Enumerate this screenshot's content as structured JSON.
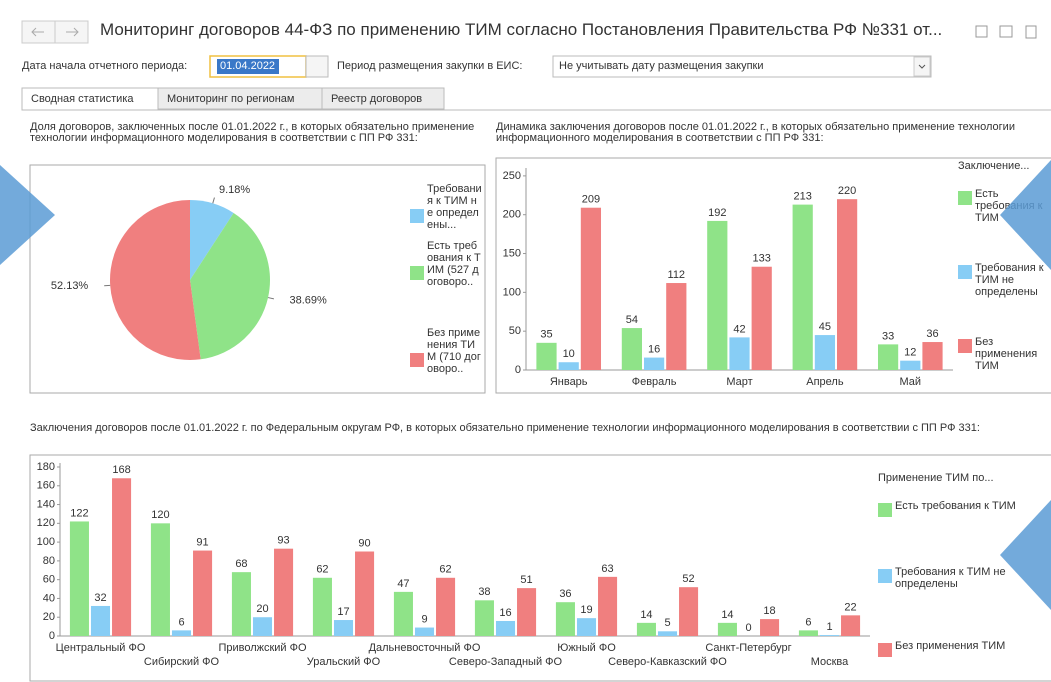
{
  "header": {
    "title": "Мониторинг договоров 44-ФЗ по применению ТИМ согласно Постановления Правительства РФ №331 от..."
  },
  "filters": {
    "date_label": "Дата начала отчетного периода:",
    "date_value": "01.04.2022",
    "period_label": "Период размещения закупки в ЕИС:",
    "period_value": "Не учитывать дату размещения закупки"
  },
  "tabs": [
    "Сводная статистика",
    "Мониторинг по регионам",
    "Реестр договоров"
  ],
  "chart_data": [
    {
      "type": "pie",
      "title": "Доля договоров, заключенных после 01.01.2022 г., в которых обязательно применение технологии информационного моделирования в соответствии с ПП РФ 331:",
      "categories": [
        "Требования к ТИМ не определены...",
        "Есть требования к ТИМ (527 договоро..",
        "Без применения ТИМ (710 договоро.."
      ],
      "values": [
        9.18,
        38.69,
        52.13
      ],
      "value_labels": [
        "9.18%",
        "38.69%",
        "52.13%"
      ],
      "colors": [
        "#87cdf5",
        "#8fe388",
        "#f07f7f"
      ]
    },
    {
      "type": "bar",
      "title": "Динамика заключения договоров после 01.01.2022 г., в которых обязательно применение технологии информационного моделирования в соответствии с ПП РФ 331:",
      "legend_title": "Заключение...",
      "categories": [
        "Январь",
        "Февраль",
        "Март",
        "Апрель",
        "Май"
      ],
      "series": [
        {
          "name": "Есть требования к ТИМ",
          "color": "#8fe388",
          "values": [
            35,
            54,
            192,
            213,
            33
          ]
        },
        {
          "name": "Требования к ТИМ не определены",
          "color": "#87cdf5",
          "values": [
            10,
            16,
            42,
            45,
            12
          ]
        },
        {
          "name": "Без применения ТИМ",
          "color": "#f07f7f",
          "values": [
            209,
            112,
            133,
            220,
            36
          ]
        }
      ],
      "ylim": [
        0,
        255
      ],
      "yticks": [
        0,
        50,
        100,
        150,
        200,
        250
      ]
    },
    {
      "type": "bar",
      "title": "Заключения договоров после 01.01.2022 г. по Федеральным округам РФ, в которых обязательно применение технологии информационного моделирования в соответствии с ПП РФ 331:",
      "legend_title": "Применение ТИМ по...",
      "categories": [
        "Центральный ФО",
        "Сибирский ФО",
        "Приволжский ФО",
        "Уральский ФО",
        "Дальневосточный ФО",
        "Северо-Западный ФО",
        "Южный ФО",
        "Северо-Кавказский ФО",
        "Санкт-Петербург",
        "Москва"
      ],
      "series": [
        {
          "name": "Есть требования к ТИМ",
          "color": "#8fe388",
          "values": [
            122,
            120,
            68,
            62,
            47,
            38,
            36,
            14,
            14,
            6
          ]
        },
        {
          "name": "Требования к ТИМ не определены",
          "color": "#87cdf5",
          "values": [
            32,
            6,
            20,
            17,
            9,
            16,
            19,
            5,
            0,
            1
          ]
        },
        {
          "name": "Без применения ТИМ",
          "color": "#f07f7f",
          "values": [
            168,
            91,
            93,
            90,
            62,
            51,
            63,
            52,
            18,
            22
          ]
        }
      ],
      "ylim": [
        0,
        180
      ],
      "yticks": [
        0,
        20,
        40,
        60,
        80,
        100,
        120,
        140,
        160,
        180
      ]
    }
  ]
}
